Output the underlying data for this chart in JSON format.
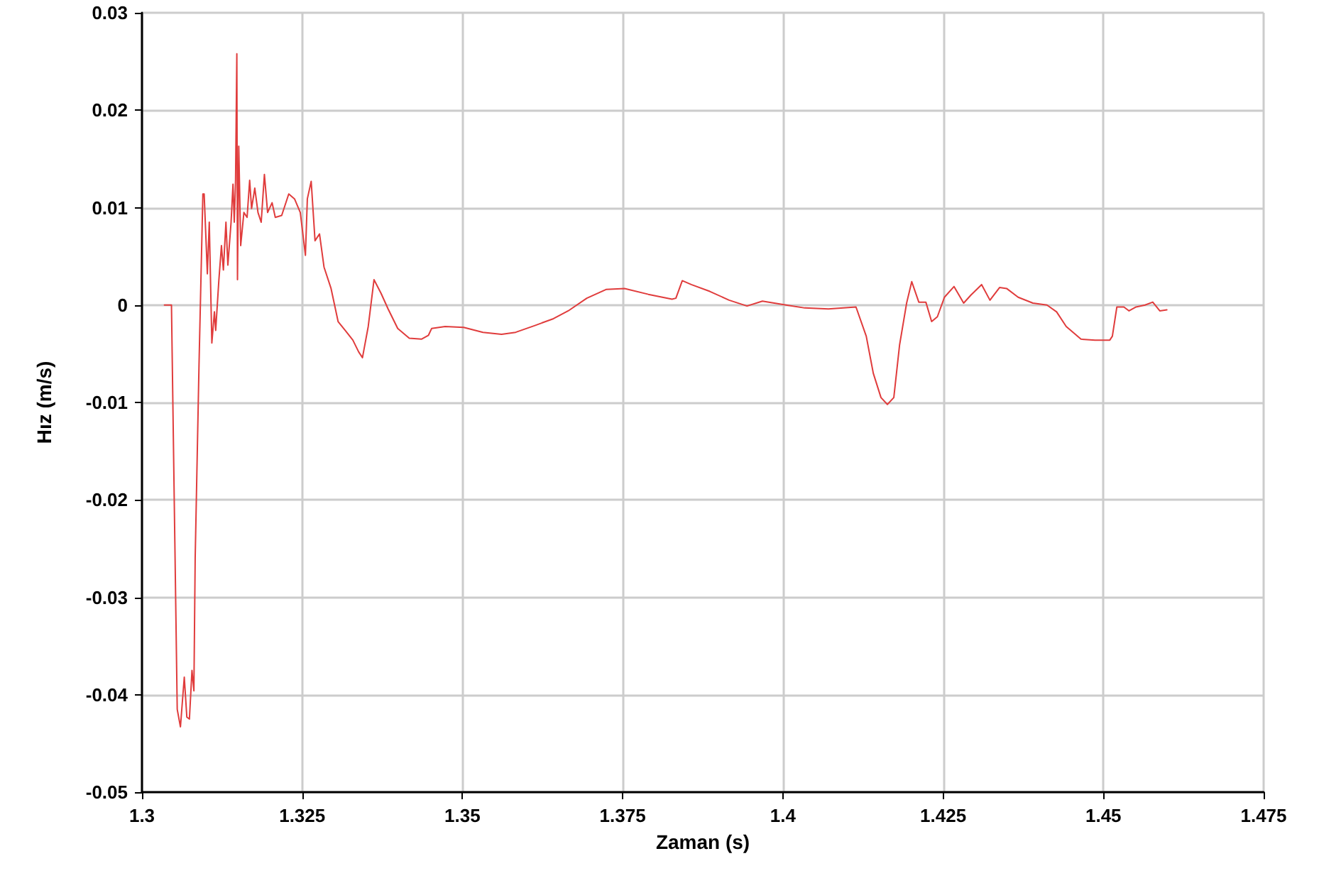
{
  "chart_data": {
    "type": "line",
    "xlabel": "Zaman (s)",
    "ylabel": "Hız (m/s)",
    "xlim": [
      1.3,
      1.475
    ],
    "xticks": [
      1.3,
      1.325,
      1.35,
      1.375,
      1.4,
      1.425,
      1.45,
      1.475
    ],
    "ylim": [
      -0.05,
      0.03
    ],
    "yticks": [
      -0.05,
      -0.04,
      -0.03,
      -0.02,
      -0.01,
      0,
      0.01,
      0.02,
      0.03
    ],
    "grid": true,
    "marker": "none",
    "line_style": "solid",
    "series": [
      {
        "color": "#e03c3c",
        "x": [
          1.3035,
          1.3046,
          1.3055,
          1.306,
          1.3066,
          1.307,
          1.3074,
          1.3078,
          1.3081,
          1.3083,
          1.3089,
          1.3095,
          1.3097,
          1.3102,
          1.3105,
          1.3109,
          1.3113,
          1.3115,
          1.312,
          1.3124,
          1.3127,
          1.3131,
          1.3134,
          1.3139,
          1.3142,
          1.3144,
          1.3146,
          1.3148,
          1.3149,
          1.3151,
          1.3154,
          1.3159,
          1.3164,
          1.3168,
          1.3171,
          1.3176,
          1.3181,
          1.3186,
          1.3191,
          1.3196,
          1.3203,
          1.3208,
          1.3218,
          1.3229,
          1.3238,
          1.3247,
          1.3255,
          1.3258,
          1.3264,
          1.327,
          1.3277,
          1.3284,
          1.3295,
          1.3306,
          1.3317,
          1.3329,
          1.3338,
          1.3344,
          1.3353,
          1.3362,
          1.3373,
          1.3384,
          1.3399,
          1.3417,
          1.3436,
          1.3447,
          1.3452,
          1.3473,
          1.3502,
          1.3532,
          1.3561,
          1.3583,
          1.3613,
          1.3642,
          1.3665,
          1.3694,
          1.3724,
          1.3753,
          1.379,
          1.3827,
          1.3833,
          1.3843,
          1.3857,
          1.3886,
          1.3916,
          1.3944,
          1.3968,
          1.4005,
          1.4034,
          1.4071,
          1.4114,
          1.413,
          1.4141,
          1.4153,
          1.4163,
          1.4173,
          1.4182,
          1.4193,
          1.4201,
          1.4212,
          1.4223,
          1.4232,
          1.4241,
          1.4252,
          1.4267,
          1.4282,
          1.4293,
          1.431,
          1.4323,
          1.4338,
          1.4349,
          1.4367,
          1.439,
          1.4412,
          1.4427,
          1.4442,
          1.4465,
          1.4487,
          1.451,
          1.4514,
          1.4521,
          1.4532,
          1.454,
          1.4551,
          1.4565,
          1.4577,
          1.4588,
          1.4599
        ],
        "values": [
          0,
          0,
          -0.0415,
          -0.0433,
          -0.0382,
          -0.0423,
          -0.0425,
          -0.0375,
          -0.0396,
          -0.026,
          -0.0061,
          0.0114,
          0.0114,
          0.0032,
          0.0085,
          -0.0039,
          -0.0007,
          -0.0026,
          0.0026,
          0.0061,
          0.0036,
          0.0085,
          0.0041,
          0.0085,
          0.0124,
          0.0085,
          0.0128,
          0.0258,
          0.0026,
          0.0163,
          0.0061,
          0.0095,
          0.009,
          0.0128,
          0.0099,
          0.012,
          0.0095,
          0.0085,
          0.0134,
          0.0095,
          0.0105,
          0.009,
          0.0092,
          0.0114,
          0.0109,
          0.0095,
          0.0051,
          0.0109,
          0.0127,
          0.0066,
          0.0073,
          0.0039,
          0.0017,
          -0.0017,
          -0.0026,
          -0.0036,
          -0.0048,
          -0.0054,
          -0.0022,
          0.0026,
          0.0012,
          -0.0004,
          -0.0024,
          -0.0034,
          -0.0035,
          -0.0031,
          -0.0024,
          -0.0022,
          -0.0023,
          -0.0028,
          -0.003,
          -0.0028,
          -0.0021,
          -0.0014,
          -0.0006,
          0.0007,
          0.0016,
          0.0017,
          0.0011,
          0.0006,
          0.0007,
          0.0025,
          0.0021,
          0.0014,
          0.0005,
          -0.0001,
          0.0004,
          0,
          -0.0003,
          -0.0004,
          -0.0002,
          -0.0032,
          -0.007,
          -0.0095,
          -0.0102,
          -0.0095,
          -0.0041,
          0.0002,
          0.0024,
          0.0003,
          0.0003,
          -0.0017,
          -0.0012,
          0.0008,
          0.0019,
          0.0002,
          0.001,
          0.0021,
          0.0005,
          0.0018,
          0.0017,
          0.0008,
          0.0002,
          0,
          -0.0007,
          -0.0022,
          -0.0035,
          -0.0036,
          -0.0036,
          -0.0032,
          -0.0002,
          -0.0002,
          -0.0006,
          -0.0002,
          0,
          0.0003,
          -0.0006,
          -0.0005
        ]
      }
    ]
  }
}
